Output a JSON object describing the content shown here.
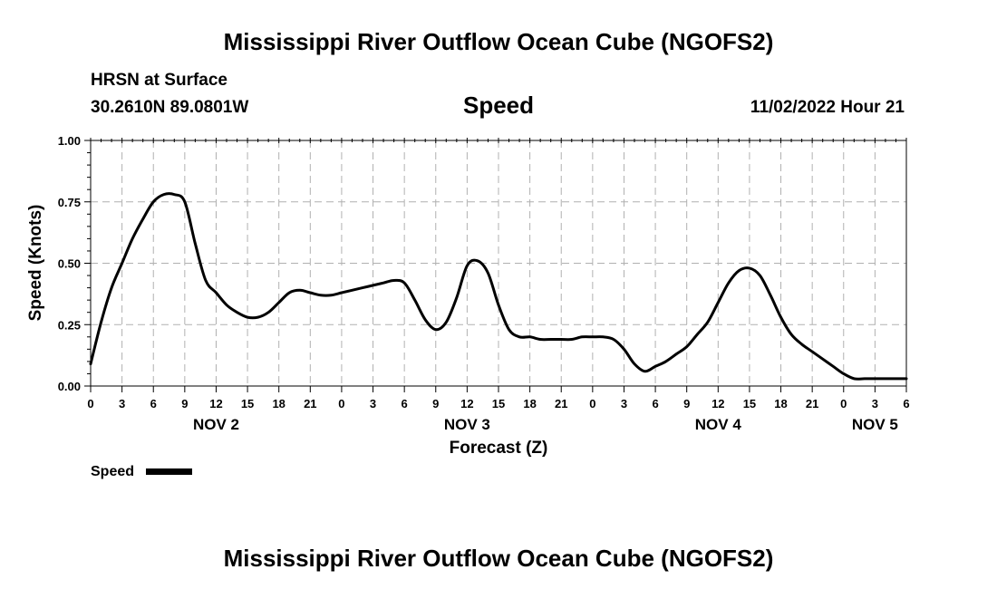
{
  "chart_data": {
    "type": "line",
    "title": "Mississippi River Outflow Ocean Cube (NGOFS2)",
    "footer_title": "Mississippi River Outflow Ocean Cube (NGOFS2)",
    "station": "HRSN at Surface",
    "location": "30.2610N  89.0801W",
    "subtitle": "Speed",
    "datetime": "11/02/2022 Hour 21",
    "ylabel": "Speed (Knots)",
    "xlabel": "Forecast (Z)",
    "ylim": [
      0,
      1
    ],
    "yticks": [
      0.0,
      0.25,
      0.5,
      0.75,
      1.0
    ],
    "ytick_labels": [
      "0.00",
      "0.25",
      "0.50",
      "0.75",
      "1.00"
    ],
    "xlim": [
      0,
      78
    ],
    "xticks": [
      0,
      3,
      6,
      9,
      12,
      15,
      18,
      21,
      24,
      27,
      30,
      33,
      36,
      39,
      42,
      45,
      48,
      51,
      54,
      57,
      60,
      63,
      66,
      69,
      72,
      75,
      78
    ],
    "xtick_labels": [
      "0",
      "3",
      "6",
      "9",
      "12",
      "15",
      "18",
      "21",
      "0",
      "3",
      "6",
      "9",
      "12",
      "15",
      "18",
      "21",
      "0",
      "3",
      "6",
      "9",
      "12",
      "15",
      "18",
      "21",
      "0",
      "3",
      "6"
    ],
    "day_labels": [
      {
        "label": "NOV 2",
        "x": 12
      },
      {
        "label": "NOV 3",
        "x": 36
      },
      {
        "label": "NOV 4",
        "x": 60
      },
      {
        "label": "NOV 5",
        "x": 75
      }
    ],
    "grid": true,
    "legend": "bottom-left",
    "series": [
      {
        "name": "Speed",
        "color": "#000000",
        "x": [
          0,
          1,
          2,
          3,
          4,
          5,
          6,
          7,
          8,
          9,
          10,
          11,
          12,
          13,
          14,
          15,
          16,
          17,
          18,
          19,
          20,
          21,
          22,
          23,
          24,
          25,
          26,
          27,
          28,
          29,
          30,
          31,
          32,
          33,
          34,
          35,
          36,
          37,
          38,
          39,
          40,
          41,
          42,
          43,
          44,
          45,
          46,
          47,
          48,
          49,
          50,
          51,
          52,
          53,
          54,
          55,
          56,
          57,
          58,
          59,
          60,
          61,
          62,
          63,
          64,
          65,
          66,
          67,
          68,
          69,
          70,
          71,
          72,
          73,
          74,
          75,
          76,
          77,
          78
        ],
        "values": [
          0.09,
          0.26,
          0.4,
          0.5,
          0.6,
          0.68,
          0.75,
          0.78,
          0.78,
          0.75,
          0.58,
          0.43,
          0.38,
          0.33,
          0.3,
          0.28,
          0.28,
          0.3,
          0.34,
          0.38,
          0.39,
          0.38,
          0.37,
          0.37,
          0.38,
          0.39,
          0.4,
          0.41,
          0.42,
          0.43,
          0.42,
          0.35,
          0.27,
          0.23,
          0.26,
          0.36,
          0.49,
          0.51,
          0.46,
          0.33,
          0.23,
          0.2,
          0.2,
          0.19,
          0.19,
          0.19,
          0.19,
          0.2,
          0.2,
          0.2,
          0.19,
          0.15,
          0.09,
          0.06,
          0.08,
          0.1,
          0.13,
          0.16,
          0.21,
          0.26,
          0.34,
          0.42,
          0.47,
          0.48,
          0.45,
          0.37,
          0.28,
          0.21,
          0.17,
          0.14,
          0.11,
          0.08,
          0.05,
          0.03,
          0.03,
          0.03,
          0.03,
          0.03,
          0.03
        ]
      }
    ]
  }
}
